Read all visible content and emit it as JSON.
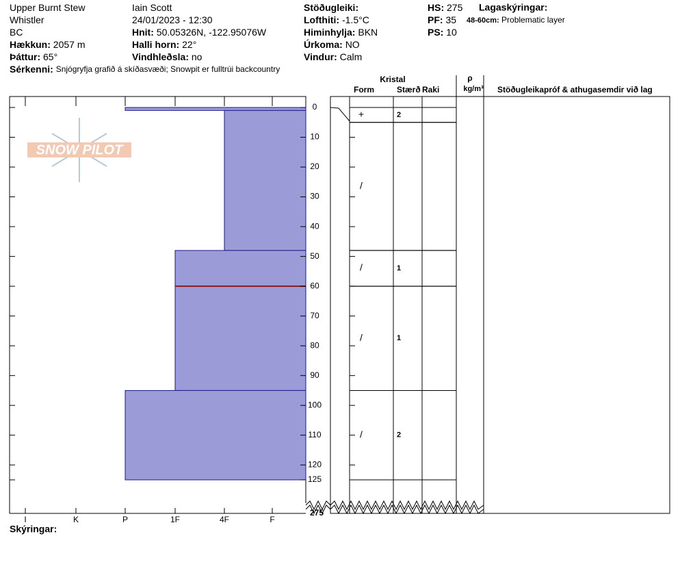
{
  "header": {
    "columns": [
      [
        {
          "value": "Upper Burnt Stew"
        },
        {
          "value": "Whistler"
        },
        {
          "value": "BC"
        },
        {
          "label": "Hækkun:",
          "value": "2057 m"
        },
        {
          "label": "Þáttur:",
          "value": "65°"
        }
      ],
      [
        {
          "value": "Iain Scott"
        },
        {
          "value": "24/01/2023 - 12:30"
        },
        {
          "label": "Hnit:",
          "value": "50.05326N, -122.95076W"
        },
        {
          "label": "Halli horn:",
          "value": "22°"
        },
        {
          "label": "Vindhleðsla:",
          "value": "no"
        }
      ],
      [
        {
          "label": "Stöðugleiki:"
        },
        {
          "label": "Lofthiti:",
          "value": "-1.5°C"
        },
        {
          "label": "Himinhylja:",
          "value": "BKN"
        },
        {
          "label": "Úrkoma:",
          "value": "NO"
        },
        {
          "label": "Vindur:",
          "value": "Calm"
        }
      ],
      [
        {
          "label": "HS:",
          "value": "275"
        },
        {
          "label": "PF:",
          "value": "35"
        },
        {
          "label": "PS:",
          "value": "10"
        }
      ]
    ],
    "layer_notes_title": "Lagaskýringar:",
    "layer_notes": [
      {
        "label": "48-60cm:",
        "value": "Problematic layer"
      }
    ],
    "remarks": {
      "label": "Sérkenni:",
      "value": "Snjógryfja grafið á skíðasvæði;  Snowpit er fulltrúi backcountry"
    }
  },
  "logo": "SNOW PILOT",
  "profile": {
    "hardness_labels": [
      "I",
      "K",
      "P",
      "1F",
      "4F",
      "F"
    ],
    "depth_lim": [
      0,
      125
    ],
    "depth_ticks": [
      0,
      10,
      20,
      30,
      40,
      50,
      60,
      70,
      80,
      90,
      100,
      110,
      120,
      125
    ],
    "total_depth": 275,
    "hardness_layers": [
      {
        "top": 0,
        "bottom": 1,
        "hardness": "P"
      },
      {
        "top": 1,
        "bottom": 48,
        "hardness": "4F"
      },
      {
        "top": 48,
        "bottom": 95,
        "hardness": "1F"
      },
      {
        "top": 95,
        "bottom": 125,
        "hardness": "P"
      }
    ],
    "problem_depth": 60,
    "legend_title": "Skýringar:"
  },
  "table": {
    "headers": {
      "crystal": "Kristal",
      "form": "Form",
      "size": "Stærð",
      "wetness": "Raki",
      "rho": "ρ",
      "density_unit": "kg/m³",
      "comments": "Stöðugleikapróf & athugasemdir við lag"
    },
    "layers": [
      {
        "top": 0,
        "bottom": 5,
        "form": "+",
        "size": "2"
      },
      {
        "top": 5,
        "bottom": 48,
        "form": "/"
      },
      {
        "top": 48,
        "bottom": 60,
        "form": "/",
        "size": "1"
      },
      {
        "top": 60,
        "bottom": 95,
        "form": "/",
        "size": "1"
      },
      {
        "top": 95,
        "bottom": 125,
        "form": "/",
        "size": "2"
      }
    ]
  }
}
